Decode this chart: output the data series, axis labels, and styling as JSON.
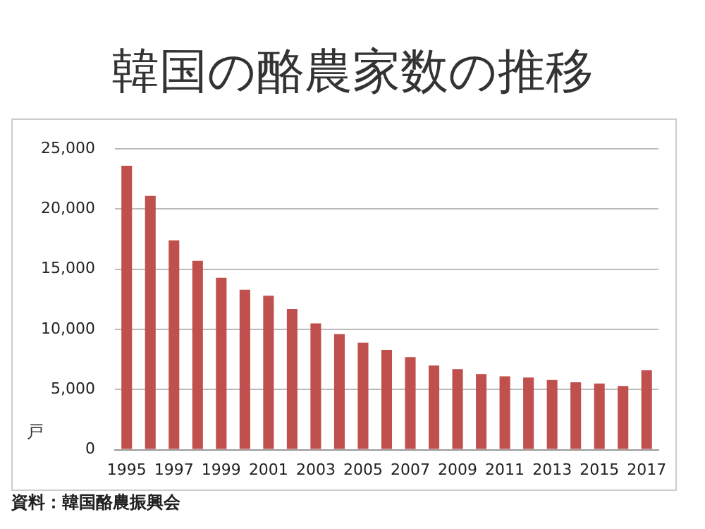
{
  "chart_data": {
    "type": "bar",
    "title": "韓国の酪農家数の推移",
    "ylabel": "戸",
    "categories": [
      "1995",
      null,
      "1997",
      null,
      "1999",
      null,
      "2001",
      null,
      "2003",
      null,
      "2005",
      null,
      "2007",
      null,
      "2009",
      null,
      "2011",
      null,
      "2013",
      null,
      "2015",
      null,
      "2017"
    ],
    "values": [
      23600,
      21100,
      17400,
      15700,
      14300,
      13300,
      12800,
      11700,
      10500,
      9600,
      8900,
      8300,
      7700,
      7000,
      6700,
      6300,
      6100,
      6000,
      5800,
      5600,
      5500,
      5300,
      6600
    ],
    "color": "#c0504d",
    "ylim": [
      0,
      25000
    ],
    "yticks": [
      0,
      {
        "value": 5000,
        "label": "5,000"
      },
      {
        "value": 10000,
        "label": "10,000"
      },
      {
        "value": 15000,
        "label": "15,000"
      },
      {
        "value": 20000,
        "label": "20,000"
      },
      {
        "value": 25000,
        "label": "25,000"
      }
    ],
    "grid": "y",
    "annotations": [
      "資料：韓国酪農振興会"
    ]
  }
}
